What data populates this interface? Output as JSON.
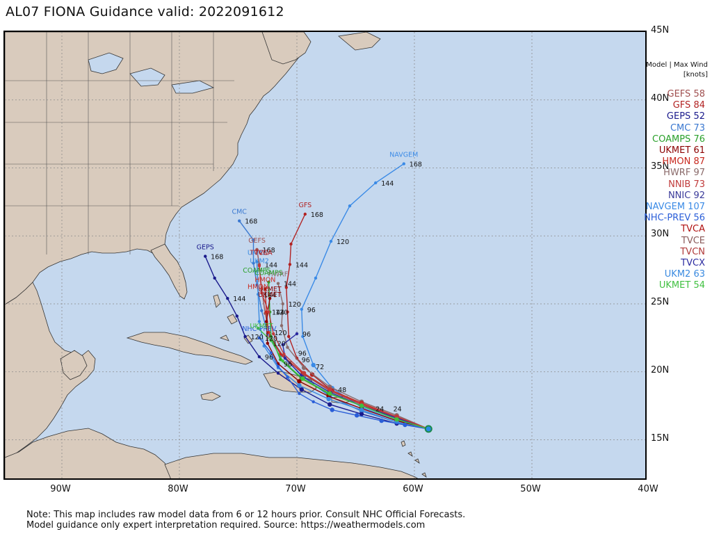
{
  "title": "AL07 FIONA Guidance valid: 2022091612",
  "legend_header": [
    "Model | Max Wind",
    "[knots]"
  ],
  "lat_labels": [
    {
      "text": "45N",
      "lat": 45
    },
    {
      "text": "40N",
      "lat": 40
    },
    {
      "text": "35N",
      "lat": 35
    },
    {
      "text": "30N",
      "lat": 30
    },
    {
      "text": "25N",
      "lat": 25
    },
    {
      "text": "20N",
      "lat": 20
    },
    {
      "text": "15N",
      "lat": 15
    }
  ],
  "lon_labels": [
    {
      "text": "90W",
      "lon": -90
    },
    {
      "text": "80W",
      "lon": -80
    },
    {
      "text": "70W",
      "lon": -70
    },
    {
      "text": "60W",
      "lon": -60
    },
    {
      "text": "50W",
      "lon": -50
    },
    {
      "text": "40W",
      "lon": -40
    }
  ],
  "legend": [
    {
      "model": "GEFS",
      "wind": "58",
      "color": "#a05050"
    },
    {
      "model": "GFS",
      "wind": "84",
      "color": "#b22222"
    },
    {
      "model": "GEPS",
      "wind": "52",
      "color": "#1a1a8c"
    },
    {
      "model": "CMC",
      "wind": "73",
      "color": "#3a78d0"
    },
    {
      "model": "COAMPS",
      "wind": "76",
      "color": "#2aa02a"
    },
    {
      "model": "UKMET",
      "wind": "61",
      "color": "#8b0000"
    },
    {
      "model": "HMON",
      "wind": "87",
      "color": "#c8281e"
    },
    {
      "model": "HWRF",
      "wind": "97",
      "color": "#8a6a6a"
    },
    {
      "model": "NNIB",
      "wind": "73",
      "color": "#c03a3a"
    },
    {
      "model": "NNIC",
      "wind": "92",
      "color": "#3a3a9a"
    },
    {
      "model": "NAVGEM",
      "wind": "107",
      "color": "#3a8ae6"
    },
    {
      "model": "NHC-PREV",
      "wind": "56",
      "color": "#2a5ed8"
    },
    {
      "model": "TVCA",
      "wind": "",
      "color": "#b01010"
    },
    {
      "model": "TVCE",
      "wind": "",
      "color": "#8a5a5a"
    },
    {
      "model": "TVCN",
      "wind": "",
      "color": "#b03a3a"
    },
    {
      "model": "TVCX",
      "wind": "",
      "color": "#2a2aa0"
    },
    {
      "model": "UKM2",
      "wind": "63",
      "color": "#3a8ae0"
    },
    {
      "model": "UKMET",
      "wind": "54",
      "color": "#40c040"
    }
  ],
  "tracks": [
    {
      "label": "NAVGEM",
      "color": "#3a8ae6",
      "points": [
        [
          -58.8,
          15.8
        ],
        [
          -61.5,
          16.4
        ],
        [
          -64.5,
          17.4
        ],
        [
          -67.0,
          18.8
        ],
        [
          -68.6,
          20.5
        ],
        [
          -69.5,
          22.6
        ],
        [
          -69.6,
          24.6
        ],
        [
          -68.4,
          26.9
        ],
        [
          -67.1,
          29.6
        ],
        [
          -65.5,
          32.2
        ],
        [
          -63.3,
          33.9
        ],
        [
          -60.9,
          35.3
        ]
      ],
      "hours": [
        {
          "text": "168",
          "at": 11
        },
        {
          "text": "144",
          "at": 10
        },
        {
          "text": "120",
          "at": 8
        },
        {
          "text": "96",
          "at": 6
        }
      ]
    },
    {
      "label": "GFS",
      "color": "#b22222",
      "points": [
        [
          -58.8,
          15.8
        ],
        [
          -61.5,
          16.6
        ],
        [
          -64.5,
          17.6
        ],
        [
          -67.0,
          18.6
        ],
        [
          -68.7,
          19.8
        ],
        [
          -70.0,
          21.0
        ],
        [
          -70.7,
          22.6
        ],
        [
          -70.8,
          24.4
        ],
        [
          -70.9,
          26.2
        ],
        [
          -70.6,
          27.9
        ],
        [
          -70.5,
          29.4
        ],
        [
          -69.3,
          31.6
        ]
      ],
      "hours": [
        {
          "text": "168",
          "at": 11
        },
        {
          "text": "144",
          "at": 9
        }
      ]
    },
    {
      "label": "CMC",
      "color": "#3a78d0",
      "points": [
        [
          -58.8,
          15.8
        ],
        [
          -61.5,
          16.3
        ],
        [
          -64.5,
          17.1
        ],
        [
          -67.2,
          18.2
        ],
        [
          -69.4,
          19.6
        ],
        [
          -71.3,
          21.2
        ],
        [
          -72.5,
          22.8
        ],
        [
          -73.0,
          24.5
        ],
        [
          -73.4,
          26.4
        ],
        [
          -73.7,
          28.0
        ],
        [
          -73.7,
          29.7
        ],
        [
          -74.9,
          31.1
        ]
      ],
      "hours": [
        {
          "text": "168",
          "at": 11
        }
      ]
    },
    {
      "label": "GEPS",
      "color": "#1a1a8c",
      "points": [
        [
          -58.8,
          15.8
        ],
        [
          -61.5,
          16.2
        ],
        [
          -64.5,
          16.9
        ],
        [
          -67.2,
          17.6
        ],
        [
          -69.6,
          18.7
        ],
        [
          -71.6,
          19.9
        ],
        [
          -73.2,
          21.1
        ],
        [
          -74.4,
          22.6
        ],
        [
          -75.1,
          24.1
        ],
        [
          -75.9,
          25.4
        ],
        [
          -77.0,
          26.9
        ],
        [
          -77.8,
          28.5
        ]
      ],
      "hours": [
        {
          "text": "168",
          "at": 11
        },
        {
          "text": "144",
          "at": 9
        },
        {
          "text": "96",
          "at": 6
        },
        {
          "text": "120",
          "at": 7
        }
      ]
    },
    {
      "label": "GEFS",
      "color": "#a05050",
      "points": [
        [
          -58.8,
          15.8
        ],
        [
          -61.5,
          16.6
        ],
        [
          -64.5,
          17.6
        ],
        [
          -67.2,
          18.6
        ],
        [
          -69.4,
          19.8
        ],
        [
          -71.2,
          21.2
        ],
        [
          -72.3,
          22.6
        ],
        [
          -72.7,
          24.3
        ],
        [
          -73.0,
          26.1
        ],
        [
          -73.2,
          27.9
        ],
        [
          -73.4,
          29.0
        ]
      ],
      "hours": [
        {
          "text": "168",
          "at": 10
        },
        {
          "text": "144",
          "at": 9
        }
      ]
    },
    {
      "label": "HWRF",
      "color": "#8a6a6a",
      "points": [
        [
          -58.8,
          15.8
        ],
        [
          -61.5,
          16.8
        ],
        [
          -64.5,
          17.8
        ],
        [
          -67.2,
          18.9
        ],
        [
          -69.4,
          20.3
        ],
        [
          -70.8,
          21.8
        ],
        [
          -71.3,
          23.4
        ],
        [
          -71.2,
          25.0
        ],
        [
          -71.6,
          26.5
        ]
      ],
      "hours": [
        {
          "text": "120",
          "at": 7
        },
        {
          "text": "144",
          "at": 8
        }
      ]
    },
    {
      "label": "HMON",
      "color": "#c8281e",
      "points": [
        [
          -58.8,
          15.8
        ],
        [
          -61.5,
          16.7
        ],
        [
          -64.5,
          17.7
        ],
        [
          -67.2,
          18.7
        ],
        [
          -69.5,
          19.9
        ],
        [
          -71.4,
          21.3
        ],
        [
          -72.4,
          22.9
        ],
        [
          -72.6,
          24.4
        ],
        [
          -72.7,
          26.1
        ]
      ],
      "hours": [
        {
          "text": "120",
          "at": 6
        },
        {
          "text": "144",
          "at": 7
        }
      ]
    },
    {
      "label": "COAMPS",
      "color": "#2aa02a",
      "points": [
        [
          -58.8,
          15.8
        ],
        [
          -61.5,
          16.5
        ],
        [
          -64.5,
          17.5
        ],
        [
          -67.3,
          18.4
        ],
        [
          -69.6,
          19.5
        ],
        [
          -71.4,
          20.9
        ],
        [
          -72.2,
          22.6
        ],
        [
          -72.3,
          24.4
        ],
        [
          -72.4,
          26.6
        ]
      ],
      "hours": [
        {
          "text": "120",
          "at": 7
        }
      ]
    },
    {
      "label": "UKMET",
      "color": "#8b0000",
      "points": [
        [
          -58.8,
          15.8
        ],
        [
          -61.5,
          16.4
        ],
        [
          -64.5,
          17.3
        ],
        [
          -67.3,
          18.2
        ],
        [
          -69.8,
          19.3
        ],
        [
          -71.6,
          20.6
        ],
        [
          -72.5,
          22.1
        ],
        [
          -72.6,
          23.7
        ],
        [
          -72.3,
          25.4
        ]
      ],
      "hours": [
        {
          "text": "96",
          "at": 5
        },
        {
          "text": "120",
          "at": 6
        }
      ]
    },
    {
      "label": "UKM2",
      "color": "#3a8ae0",
      "points": [
        [
          -58.8,
          15.8
        ],
        [
          -61.5,
          16.3
        ],
        [
          -64.5,
          17.2
        ],
        [
          -67.3,
          18.0
        ],
        [
          -69.8,
          19.0
        ],
        [
          -71.6,
          20.3
        ],
        [
          -72.8,
          21.9
        ],
        [
          -73.2,
          23.7
        ],
        [
          -73.3,
          25.7
        ],
        [
          -73.4,
          28.1
        ]
      ],
      "hours": [
        {
          "text": "144",
          "at": 8
        }
      ]
    },
    {
      "label": "NHC-PREV",
      "color": "#2a5ed8",
      "points": [
        [
          -58.8,
          15.8
        ],
        [
          -60.8,
          16.1
        ],
        [
          -62.8,
          16.4
        ],
        [
          -64.9,
          16.8
        ],
        [
          -67.0,
          17.2
        ],
        [
          -68.6,
          17.8
        ],
        [
          -69.8,
          18.4
        ],
        [
          -70.8,
          19.6
        ],
        [
          -71.6,
          20.4
        ],
        [
          -72.2,
          21.4
        ],
        [
          -73.2,
          22.5
        ]
      ],
      "hours": [
        {
          "text": "120",
          "at": 10
        }
      ]
    },
    {
      "label": "",
      "color": "#2a2aa0",
      "points": [
        [
          -58.8,
          15.8
        ],
        [
          -61.5,
          16.6
        ],
        [
          -64.5,
          17.5
        ],
        [
          -67.2,
          18.5
        ],
        [
          -69.6,
          19.7
        ],
        [
          -71.0,
          21.0
        ],
        [
          -71.2,
          22.0
        ],
        [
          -70.0,
          22.8
        ]
      ],
      "hours": [
        {
          "text": "96",
          "at": 7
        }
      ]
    },
    {
      "label": "",
      "color": "#c03a3a",
      "points": [
        [
          -58.8,
          15.8
        ],
        [
          -61.5,
          16.7
        ],
        [
          -64.5,
          17.6
        ],
        [
          -67.2,
          18.7
        ],
        [
          -69.4,
          19.9
        ],
        [
          -71.1,
          21.3
        ],
        [
          -72.0,
          22.8
        ],
        [
          -72.4,
          24.4
        ],
        [
          -73.0,
          25.8
        ],
        [
          -73.2,
          27.8
        ]
      ],
      "hours": []
    },
    {
      "label": "",
      "color": "#40c040",
      "points": [
        [
          -58.8,
          15.8
        ],
        [
          -61.5,
          16.5
        ],
        [
          -64.5,
          17.5
        ],
        [
          -67.2,
          18.4
        ],
        [
          -69.5,
          19.5
        ],
        [
          -71.2,
          20.8
        ],
        [
          -72.2,
          22.3
        ],
        [
          -73.3,
          23.2
        ]
      ],
      "hours": []
    }
  ],
  "hour_markers": [
    {
      "text": "24",
      "lon": -63.3,
      "lat": 17.1
    },
    {
      "text": "24",
      "lon": -61.8,
      "lat": 17.1
    },
    {
      "text": "48",
      "lon": -66.5,
      "lat": 18.5
    },
    {
      "text": "72",
      "lon": -68.4,
      "lat": 20.2
    },
    {
      "text": "96",
      "lon": -69.9,
      "lat": 21.2
    },
    {
      "text": "96",
      "lon": -69.6,
      "lat": 20.7
    }
  ],
  "top_labels": [
    {
      "text": "TVCN",
      "lon": -74.0,
      "lat": 28.6,
      "color": "#b03a3a"
    },
    {
      "text": "TVCA",
      "lon": -73.6,
      "lat": 28.6,
      "color": "#b01010"
    },
    {
      "text": "UKM2",
      "lon": -74.0,
      "lat": 28.0,
      "color": "#3a8ae0"
    },
    {
      "text": "HMON",
      "lon": -74.2,
      "lat": 26.1,
      "color": "#c8281e"
    },
    {
      "text": "UKMET",
      "lon": -73.3,
      "lat": 25.5,
      "color": "#8b0000"
    },
    {
      "text": "UKMET",
      "lon": -74.0,
      "lat": 23.2,
      "color": "#40c040"
    },
    {
      "text": "COAMPS",
      "lon": -74.6,
      "lat": 27.3,
      "color": "#2aa02a"
    }
  ],
  "footer": [
    "Note: This map includes raw model data from 6 or 12 hours prior. Consult NHC Official Forecasts.",
    "Model guidance only expert interpretation required. Source: https://weathermodels.com"
  ],
  "colors": {
    "ocean": "#c5d8ee",
    "land": "#d9cbbd",
    "border": "#333333",
    "grid": "#8a8a8a",
    "storm_center": "#2a8ae6"
  }
}
